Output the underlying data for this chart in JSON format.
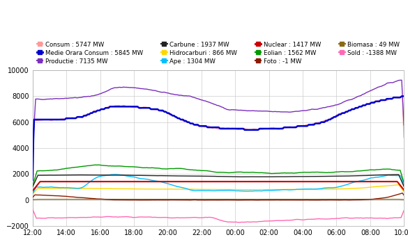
{
  "legend_entries": [
    {
      "label": "Consum : 5747 MW",
      "color": "#FF9999",
      "lw": 1.2
    },
    {
      "label": "Medie Orara Consum : 5845 MW",
      "color": "#0000CD",
      "lw": 1.8
    },
    {
      "label": "Productie : 7135 MW",
      "color": "#7B2FBE",
      "lw": 1.2
    },
    {
      "label": "Carbune : 1937 MW",
      "color": "#222222",
      "lw": 1.2
    },
    {
      "label": "Hidrocarburi : 866 MW",
      "color": "#FFD700",
      "lw": 1.2
    },
    {
      "label": "Ape : 1304 MW",
      "color": "#00BFFF",
      "lw": 1.2
    },
    {
      "label": "Nuclear : 1417 MW",
      "color": "#CC0000",
      "lw": 1.8
    },
    {
      "label": "Eolian : 1562 MW",
      "color": "#009900",
      "lw": 1.2
    },
    {
      "label": "Foto : -1 MW",
      "color": "#8B1A00",
      "lw": 1.2
    },
    {
      "label": "Biomasa : 49 MW",
      "color": "#8B6914",
      "lw": 1.2
    },
    {
      "label": "Sold : -1388 MW",
      "color": "#FF69B4",
      "lw": 1.2
    }
  ],
  "ylim": [
    -2000,
    10000
  ],
  "yticks": [
    -2000,
    0,
    2000,
    4000,
    6000,
    8000,
    10000
  ],
  "xtick_labels": [
    "12:00",
    "14:00",
    "16:00",
    "18:00",
    "20:00",
    "22:00",
    "00:00",
    "02:00",
    "04:00",
    "06:00",
    "08:00",
    "10:00"
  ],
  "bg_color": "#FFFFFF",
  "grid_color": "#CCCCCC"
}
